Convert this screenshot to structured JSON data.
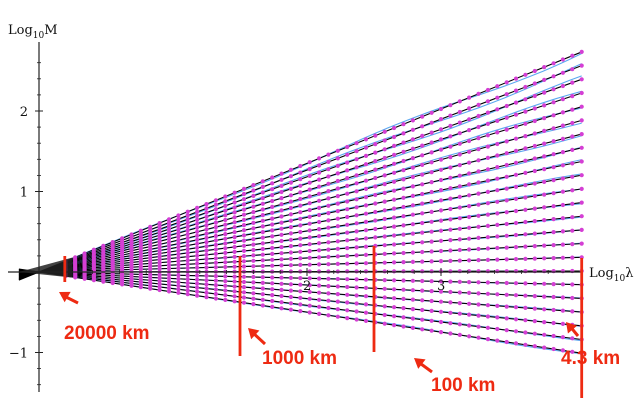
{
  "chart_data": {
    "type": "line",
    "xlabel": {
      "base": "Log",
      "sub": "10",
      "sym": "λ"
    },
    "ylabel": {
      "base": "Log",
      "sub": "10",
      "sym": "M"
    },
    "xlim": [
      0,
      4.2
    ],
    "ylim": [
      -1.45,
      2.85
    ],
    "x_ticks": [
      2,
      3
    ],
    "y_ticks": [
      -1,
      1,
      2
    ],
    "data_x_range": [
      0.2,
      4.05
    ],
    "fan_origin": [
      0,
      0
    ],
    "grid": false,
    "legend": "none",
    "series_slopes": [
      0.675,
      0.633,
      0.591,
      0.549,
      0.507,
      0.465,
      0.423,
      0.381,
      0.339,
      0.297,
      0.255,
      0.213,
      0.171,
      0.129,
      0.087,
      0.045,
      0.003,
      -0.039,
      -0.081,
      -0.123,
      -0.165,
      -0.207,
      -0.249
    ],
    "colors": {
      "fit_line": "#000000",
      "data_line": "#5aa8f0",
      "points": "#d43fd4",
      "annotation": "#ee2a12"
    },
    "annotations": [
      {
        "label": "20000 km",
        "x": 0.2
      },
      {
        "label": "1000 km",
        "x": 1.5
      },
      {
        "label": "100 km",
        "x": 2.5
      },
      {
        "label": "4.3 km",
        "x": 4.05
      }
    ]
  }
}
